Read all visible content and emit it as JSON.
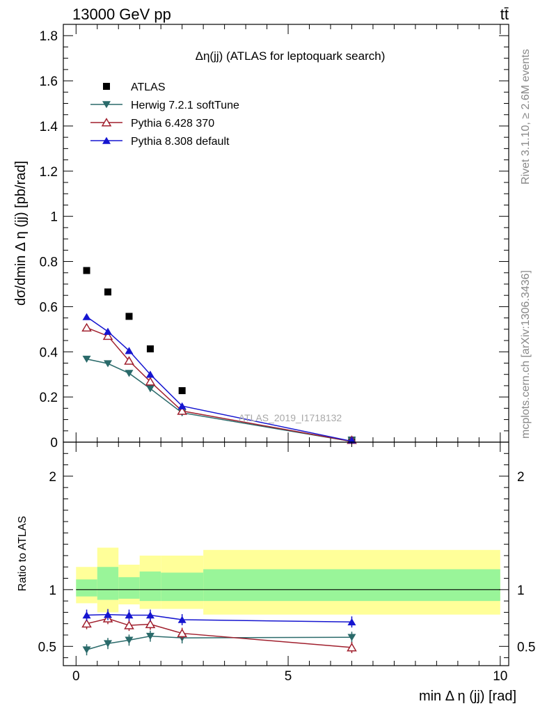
{
  "header": {
    "left": "13000 GeV pp",
    "right": "tt̄"
  },
  "side_text": {
    "top": "Rivet 3.1.10, ≥ 2.6M events",
    "bottom": "mcplots.cern.ch [arXiv:1306.3436]"
  },
  "watermark": "ATLAS_2019_I1718132",
  "chart_data": [
    {
      "type": "scatter",
      "panel": "main",
      "title": "Δη(jj) (ATLAS for leptoquark search)",
      "ylabel": "dσ/dmin Δ η (jj) [pb/rad]",
      "xlim": [
        -0.3,
        10.2
      ],
      "ylim": [
        0,
        1.85
      ],
      "yticks": [
        0,
        0.2,
        0.4,
        0.6,
        0.8,
        1,
        1.2,
        1.4,
        1.6,
        1.8
      ],
      "ytick_labels": [
        "0",
        "0.2",
        "0.4",
        "0.6",
        "0.8",
        "1",
        "1.2",
        "1.4",
        "1.6",
        "1.8"
      ],
      "legend_position": "top-left",
      "x": [
        0.25,
        0.75,
        1.25,
        1.75,
        2.5,
        6.5
      ],
      "series": [
        {
          "name": "ATLAS",
          "color": "#000000",
          "marker": "square",
          "line": false,
          "values": [
            0.76,
            0.665,
            0.557,
            0.413,
            0.228,
            0.005
          ]
        },
        {
          "name": "Herwig 7.2.1 softTune",
          "color": "#2a6a6a",
          "marker": "triangle-down",
          "line": true,
          "values": [
            0.368,
            0.348,
            0.305,
            0.237,
            0.13,
            0.003
          ]
        },
        {
          "name": "Pythia 6.428 370",
          "color": "#a01f2d",
          "marker": "triangle-up-open",
          "line": true,
          "values": [
            0.507,
            0.47,
            0.36,
            0.268,
            0.138,
            0.003
          ]
        },
        {
          "name": "Pythia 8.308 default",
          "color": "#1515d0",
          "marker": "triangle-up",
          "line": true,
          "values": [
            0.555,
            0.49,
            0.405,
            0.3,
            0.16,
            0.004
          ]
        }
      ]
    },
    {
      "type": "line",
      "panel": "ratio",
      "ylabel": "Ratio to ATLAS",
      "xlabel": "min Δ η (jj) [rad]",
      "xlim": [
        -0.3,
        10.2
      ],
      "ylim": [
        0.33,
        2.3
      ],
      "xticks": [
        0,
        5,
        10
      ],
      "xtick_labels": [
        "0",
        "5",
        "10"
      ],
      "yticks": [
        0.5,
        1,
        2
      ],
      "ytick_labels": [
        "0.5",
        "1",
        "2"
      ],
      "bands": {
        "bins": [
          [
            0,
            0.5
          ],
          [
            0.5,
            1.0
          ],
          [
            1.0,
            1.5
          ],
          [
            1.5,
            2.0
          ],
          [
            2.0,
            3.0
          ],
          [
            3.0,
            10.0
          ]
        ],
        "outer_color": "#ffff99",
        "inner_color": "#99f599",
        "outer": [
          [
            0.88,
            1.2
          ],
          [
            0.8,
            1.37
          ],
          [
            0.87,
            1.22
          ],
          [
            0.83,
            1.3
          ],
          [
            0.83,
            1.3
          ],
          [
            0.78,
            1.35
          ]
        ],
        "inner": [
          [
            0.94,
            1.09
          ],
          [
            0.91,
            1.2
          ],
          [
            0.92,
            1.11
          ],
          [
            0.9,
            1.16
          ],
          [
            0.9,
            1.15
          ],
          [
            0.9,
            1.18
          ]
        ]
      },
      "x": [
        0.25,
        0.75,
        1.25,
        1.75,
        2.5,
        6.5
      ],
      "series": [
        {
          "name": "Herwig 7.2.1 softTune",
          "color": "#2a6a6a",
          "marker": "triangle-down",
          "values": [
            0.47,
            0.525,
            0.555,
            0.59,
            0.575,
            0.58
          ]
        },
        {
          "name": "Pythia 6.428 370",
          "color": "#a01f2d",
          "marker": "triangle-up-open",
          "values": [
            0.7,
            0.745,
            0.685,
            0.695,
            0.615,
            0.49
          ]
        },
        {
          "name": "Pythia 8.308 default",
          "color": "#1515d0",
          "marker": "triangle-up",
          "values": [
            0.775,
            0.78,
            0.775,
            0.775,
            0.735,
            0.715
          ]
        }
      ]
    }
  ]
}
